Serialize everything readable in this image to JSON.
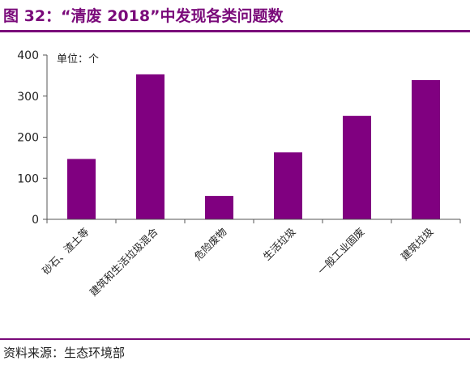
{
  "title": "图 32：“清废 2018”中发现各类问题数",
  "source": "资料来源：生态环境部",
  "chart_data": {
    "type": "bar",
    "unit_label": "单位：个",
    "categories": [
      "砂石、渣土等",
      "建筑和生活垃圾混合",
      "危险废物",
      "生活垃圾",
      "一般工业固废",
      "建筑垃圾"
    ],
    "values": [
      147,
      353,
      57,
      163,
      252,
      339
    ],
    "ylim": [
      0,
      400
    ],
    "yticks": [
      0,
      100,
      200,
      300,
      400
    ],
    "bar_color": "#800080",
    "grid": false
  }
}
